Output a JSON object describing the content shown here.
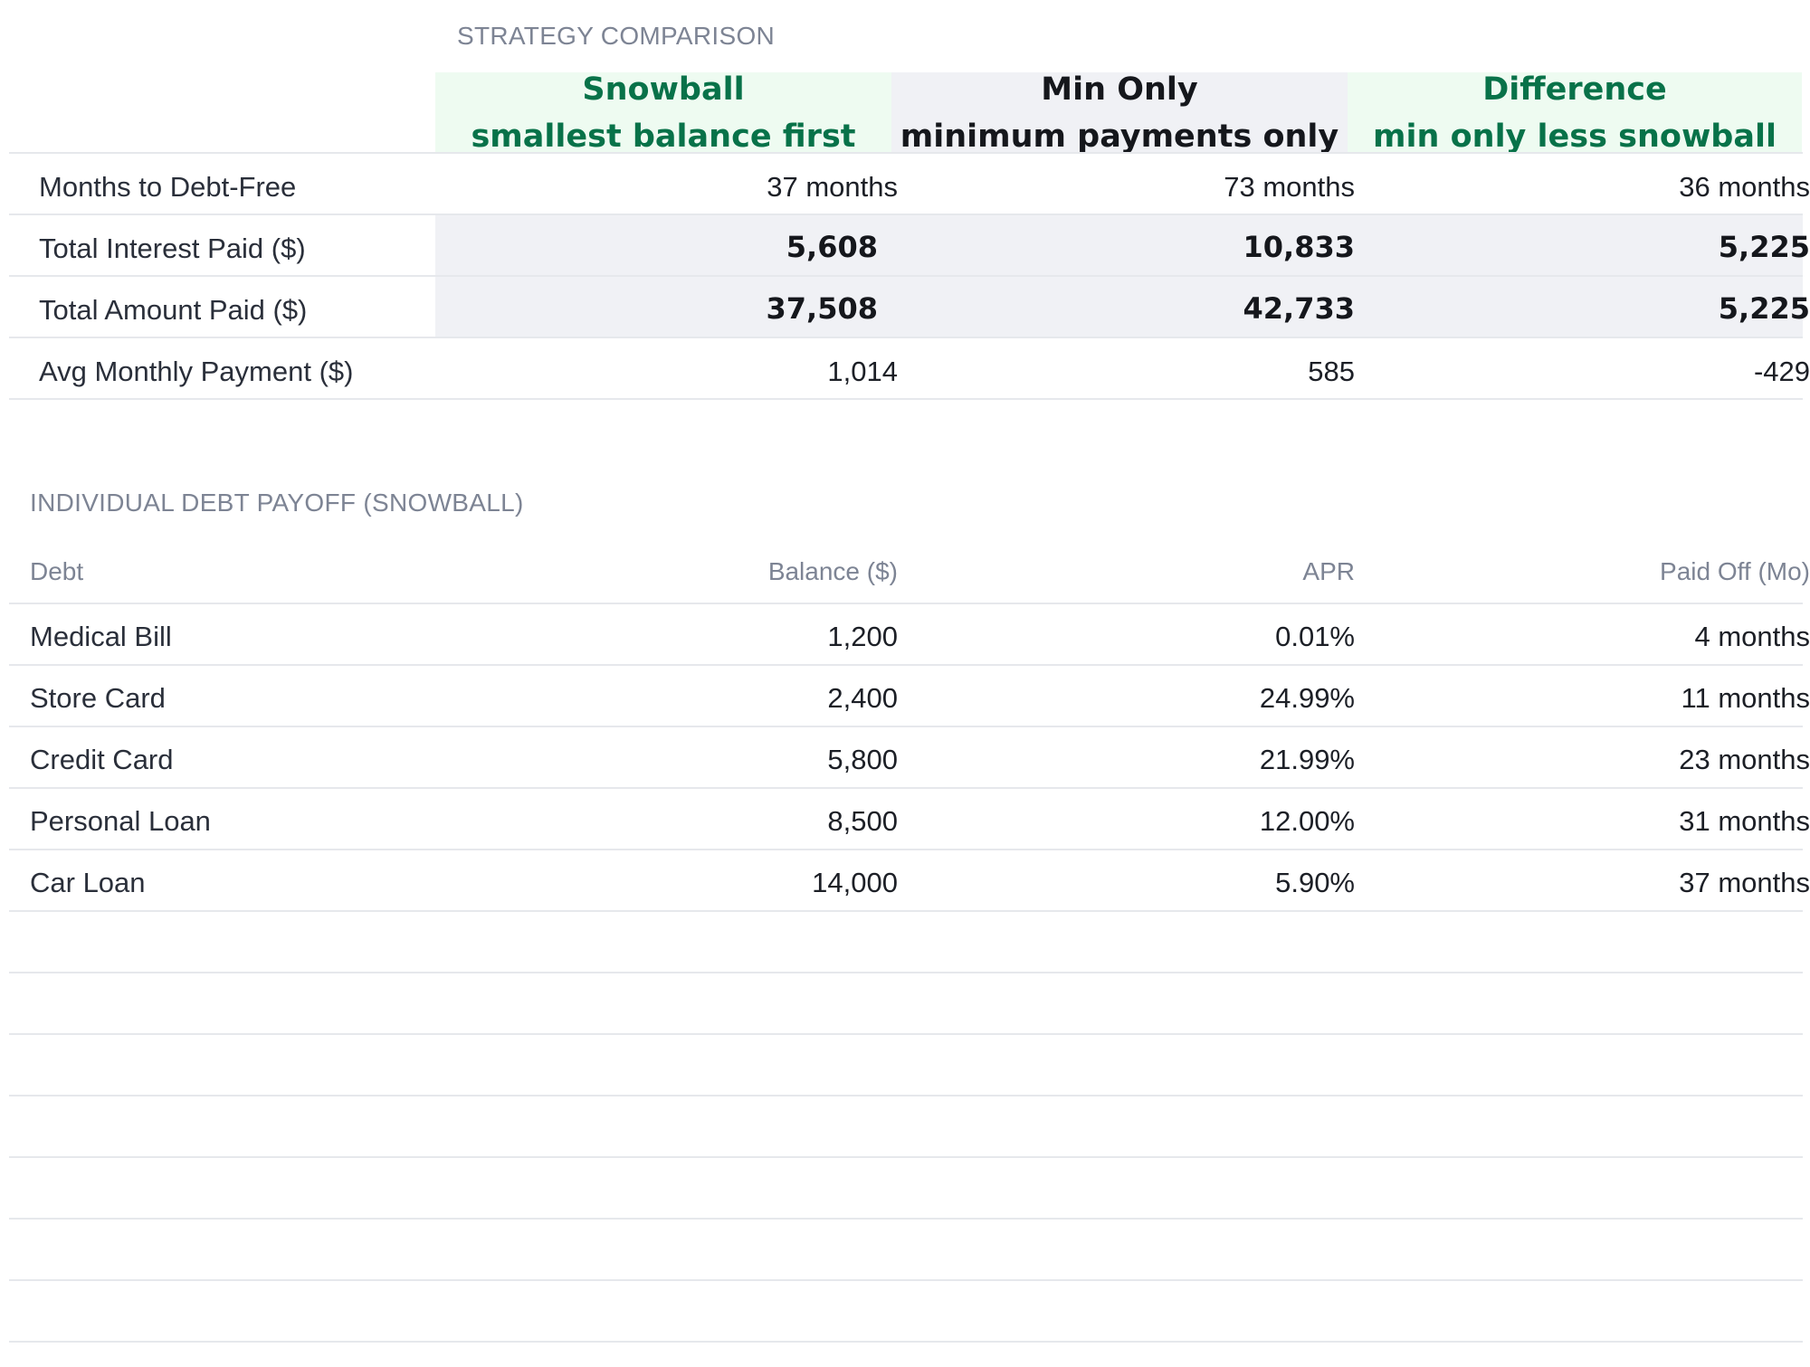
{
  "comparison": {
    "section_title": "STRATEGY COMPARISON",
    "columns": [
      {
        "name": "Snowball",
        "subtitle": "smallest balance first",
        "color": "#087249",
        "bg": "#eefbf1"
      },
      {
        "name": "Min Only",
        "subtitle": "minimum payments only",
        "color": "#15171c",
        "bg": "#f0f1f5"
      },
      {
        "name": "Difference",
        "subtitle": "min only less snowball",
        "color": "#087249",
        "bg": "#eefbf1"
      }
    ],
    "rows": [
      {
        "label": "Months to Debt-Free",
        "values": [
          "37 months",
          "73 months",
          "36 months"
        ],
        "bold": false
      },
      {
        "label": "Total Interest Paid ($)",
        "values": [
          "5,608",
          "10,833",
          "5,225"
        ],
        "bold": true
      },
      {
        "label": "Total Amount Paid ($)",
        "values": [
          "37,508",
          "42,733",
          "5,225"
        ],
        "bold": true
      },
      {
        "label": "Avg Monthly Payment ($)",
        "values": [
          "1,014",
          "585",
          "-429"
        ],
        "bold": false
      }
    ]
  },
  "payoff": {
    "section_title": "INDIVIDUAL DEBT PAYOFF (SNOWBALL)",
    "headers": [
      "Debt",
      "Balance ($)",
      "APR",
      "Paid Off (Mo)"
    ],
    "rows": [
      [
        "Medical Bill",
        "1,200",
        "0.01%",
        "4 months"
      ],
      [
        "Store Card",
        "2,400",
        "24.99%",
        "11 months"
      ],
      [
        "Credit Card",
        "5,800",
        "21.99%",
        "23 months"
      ],
      [
        "Personal Loan",
        "8,500",
        "12.00%",
        "31 months"
      ],
      [
        "Car Loan",
        "14,000",
        "5.90%",
        "37 months"
      ]
    ]
  }
}
